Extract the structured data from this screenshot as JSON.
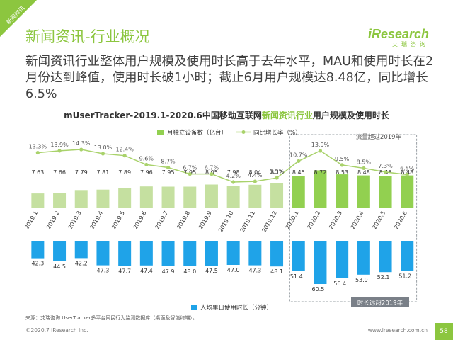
{
  "corner_label": "新闻资讯",
  "page_title": "新闻资讯-行业概况",
  "logo": {
    "main": "iResearch",
    "sub": "艾瑞咨询"
  },
  "subtitle": "新闻资讯行业整体用户规模及使用时长高于去年水平，MAU和使用时长在2月份达到峰值，使用时长破1小时；截止6月用户规模达8.48亿，同比增长6.5%",
  "chart_title": {
    "prefix": "mUserTracker-2019.1-2020.6中国移动互联网",
    "highlight": "新闻资讯行业",
    "suffix": "用户规模及使用时长"
  },
  "colors": {
    "accent": "#8cc63f",
    "bar_top": "#92d050",
    "bar_top_light": "#c5e0a0",
    "bar_bottom": "#1fa3e8",
    "line": "#a9d26b",
    "box": "#9aa0a6"
  },
  "chart_data": {
    "type": "bar",
    "categories": [
      "2019.1",
      "2019.2",
      "2019.3",
      "2019.4",
      "2019.5",
      "2019.6",
      "2019.7",
      "2019.8",
      "2019.9",
      "2019.10",
      "2019.11",
      "2019.12",
      "2020.1",
      "2020.2",
      "2020.3",
      "2020.4",
      "2020.5",
      "2020.6"
    ],
    "series": [
      {
        "name": "月独立设备数（亿台）",
        "type": "bar",
        "values": [
          7.63,
          7.66,
          7.79,
          7.81,
          7.89,
          7.96,
          7.95,
          7.95,
          8.05,
          7.98,
          8.04,
          8.13,
          8.45,
          8.72,
          8.53,
          8.48,
          8.46,
          8.48
        ]
      },
      {
        "name": "同比增长率（%）",
        "type": "line",
        "values": [
          13.3,
          13.9,
          14.3,
          13.0,
          12.4,
          9.6,
          8.7,
          6.7,
          6.7,
          4.2,
          4.4,
          5.5,
          10.7,
          13.9,
          9.5,
          8.5,
          7.3,
          6.5
        ]
      },
      {
        "name": "人均单日使用时长（分钟）",
        "type": "bar",
        "values": [
          42.3,
          44.5,
          42.2,
          47.3,
          47.7,
          47.4,
          47.9,
          48.0,
          47.5,
          47.0,
          47.3,
          48.1,
          51.4,
          60.5,
          56.4,
          53.9,
          52.1,
          51.2
        ]
      }
    ],
    "growth_labels": [
      "13.3%",
      "13.9%",
      "14.3%",
      "13.0%",
      "12.4%",
      "9.6%",
      "8.7%",
      "6.7%",
      "6.7%",
      "4.2%",
      "4.4%",
      "5.5%",
      "10.7%",
      "13.9%",
      "9.5%",
      "8.5%",
      "7.3%",
      "6.5%"
    ],
    "annotations": {
      "top": "流量超过2019年",
      "bottom": "时长远超2019年"
    },
    "highlight_range": [
      "2020.1",
      "2020.6"
    ],
    "legend_position": "top"
  },
  "source": "来源：艾瑞咨询 UserTracker多平台网民行为监测数据库（桌面及智能终端）。",
  "copyright": "©2020.7 iResearch Inc.",
  "website": "www.iresearch.com.cn",
  "page_number": "58"
}
